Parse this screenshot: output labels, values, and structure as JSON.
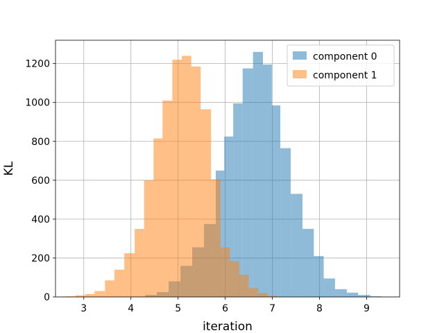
{
  "chart_data": {
    "type": "bar",
    "xlabel": "iteration",
    "ylabel": "KL",
    "xlim": [
      2.4,
      9.7
    ],
    "ylim": [
      0,
      1320
    ],
    "xticks": [
      3,
      4,
      5,
      6,
      7,
      8,
      9
    ],
    "yticks": [
      0,
      200,
      400,
      600,
      800,
      1000,
      1200
    ],
    "grid": true,
    "legend_position": "top-right",
    "series": [
      {
        "name": "component 0",
        "color": "#1f77b4",
        "opacity": 0.5,
        "bin_edges": [
          4.3,
          4.55,
          4.8,
          5.05,
          5.3,
          5.55,
          5.8,
          5.98,
          6.17,
          6.37,
          6.59,
          6.8,
          6.99,
          7.17,
          7.39,
          7.64,
          7.88,
          8.09,
          8.33,
          8.58,
          8.82,
          9.08,
          9.32
        ],
        "counts": [
          10,
          25,
          80,
          160,
          255,
          375,
          650,
          825,
          995,
          1175,
          1260,
          1195,
          985,
          765,
          530,
          350,
          210,
          95,
          40,
          22,
          10,
          3
        ]
      },
      {
        "name": "component 1",
        "color": "#ff7f0e",
        "opacity": 0.5,
        "bin_edges": [
          2.6,
          2.82,
          3.03,
          3.23,
          3.45,
          3.65,
          3.86,
          4.08,
          4.28,
          4.48,
          4.67,
          4.88,
          5.08,
          5.28,
          5.48,
          5.7,
          5.9,
          6.1,
          6.3,
          6.5,
          6.7,
          6.9,
          7.1
        ],
        "counts": [
          3,
          8,
          15,
          30,
          85,
          140,
          225,
          350,
          600,
          815,
          1010,
          1220,
          1240,
          1185,
          965,
          605,
          255,
          185,
          115,
          45,
          20,
          5
        ]
      }
    ]
  }
}
